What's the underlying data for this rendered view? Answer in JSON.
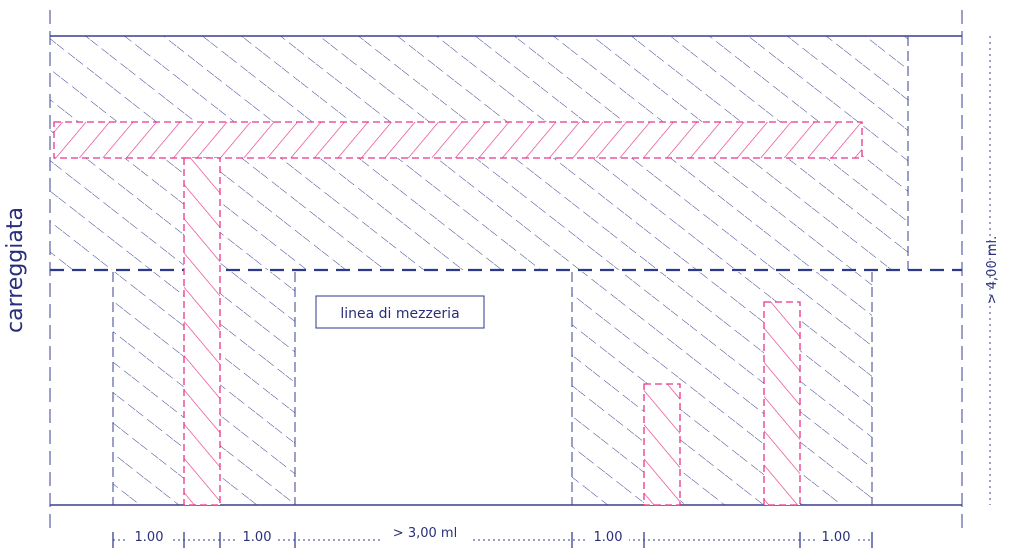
{
  "labels": {
    "road": "carreggiata",
    "centerline": "linea di mezzeria",
    "height": "> 4,00 ml.",
    "dim_1": "1.00",
    "dim_2": "1.00",
    "dim_3": "> 3,00 ml",
    "dim_4": "1.00",
    "dim_5": "1.00"
  },
  "colors": {
    "blue_line": "#2d3a8c",
    "magenta": "#e8358a",
    "text": "#2a2f7a"
  }
}
